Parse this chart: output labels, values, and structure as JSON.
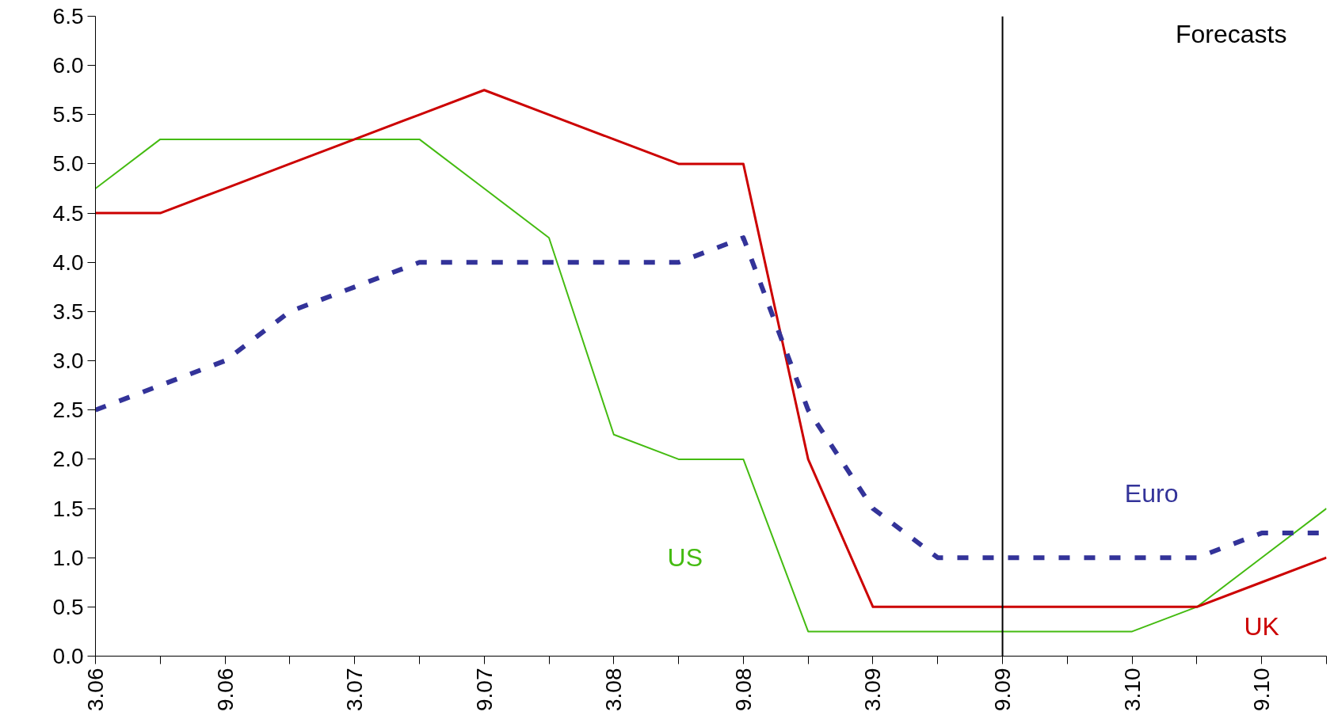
{
  "chart_data": {
    "type": "line",
    "categories": [
      "3.06",
      null,
      "9.06",
      null,
      "3.07",
      null,
      "9.07",
      null,
      "3.08",
      null,
      "9.08",
      null,
      "3.09",
      null,
      "9.09",
      null,
      "3.10",
      null,
      "9.10",
      null
    ],
    "series": [
      {
        "name": "US",
        "color": "#44bb11",
        "values": [
          4.75,
          5.25,
          5.25,
          5.25,
          5.25,
          5.25,
          4.75,
          4.25,
          2.25,
          2.0,
          2.0,
          0.25,
          0.25,
          0.25,
          0.25,
          0.25,
          0.25,
          0.5,
          1.0,
          1.5
        ]
      },
      {
        "name": "UK",
        "color": "#cc0000",
        "values": [
          4.5,
          4.5,
          4.75,
          5.0,
          5.25,
          5.5,
          5.75,
          5.5,
          5.25,
          5.0,
          5.0,
          2.0,
          0.5,
          0.5,
          0.5,
          0.5,
          0.5,
          0.5,
          0.75,
          1.0
        ]
      },
      {
        "name": "Euro",
        "color": "#333399",
        "line_style": "dashed",
        "values": [
          2.5,
          2.75,
          3.0,
          3.5,
          3.75,
          4.0,
          4.0,
          4.0,
          4.0,
          4.0,
          4.25,
          2.5,
          1.5,
          1.0,
          1.0,
          1.0,
          1.0,
          1.0,
          1.25,
          1.25
        ]
      }
    ],
    "ylim": [
      0,
      6.5
    ],
    "yticks": [
      {
        "value": 0,
        "label": "0.0"
      },
      {
        "value": 0.5,
        "label": "0.5"
      },
      {
        "value": 1,
        "label": "1.0"
      },
      {
        "value": 1.5,
        "label": "1.5"
      },
      {
        "value": 2,
        "label": "2.0"
      },
      {
        "value": 2.5,
        "label": "2.5"
      },
      {
        "value": 3,
        "label": "3.0"
      },
      {
        "value": 3.5,
        "label": "3.5"
      },
      {
        "value": 4,
        "label": "4.0"
      },
      {
        "value": 4.5,
        "label": "4.5"
      },
      {
        "value": 5,
        "label": "5.0"
      },
      {
        "value": 5.5,
        "label": "5.5"
      },
      {
        "value": 6,
        "label": "6.0"
      },
      {
        "value": 6.5,
        "label": "6.5"
      }
    ],
    "ref_lines": [
      {
        "axis": "x",
        "value": "9.09",
        "label": "Forecasts",
        "color": "#000000"
      }
    ],
    "line_style": "solid"
  }
}
